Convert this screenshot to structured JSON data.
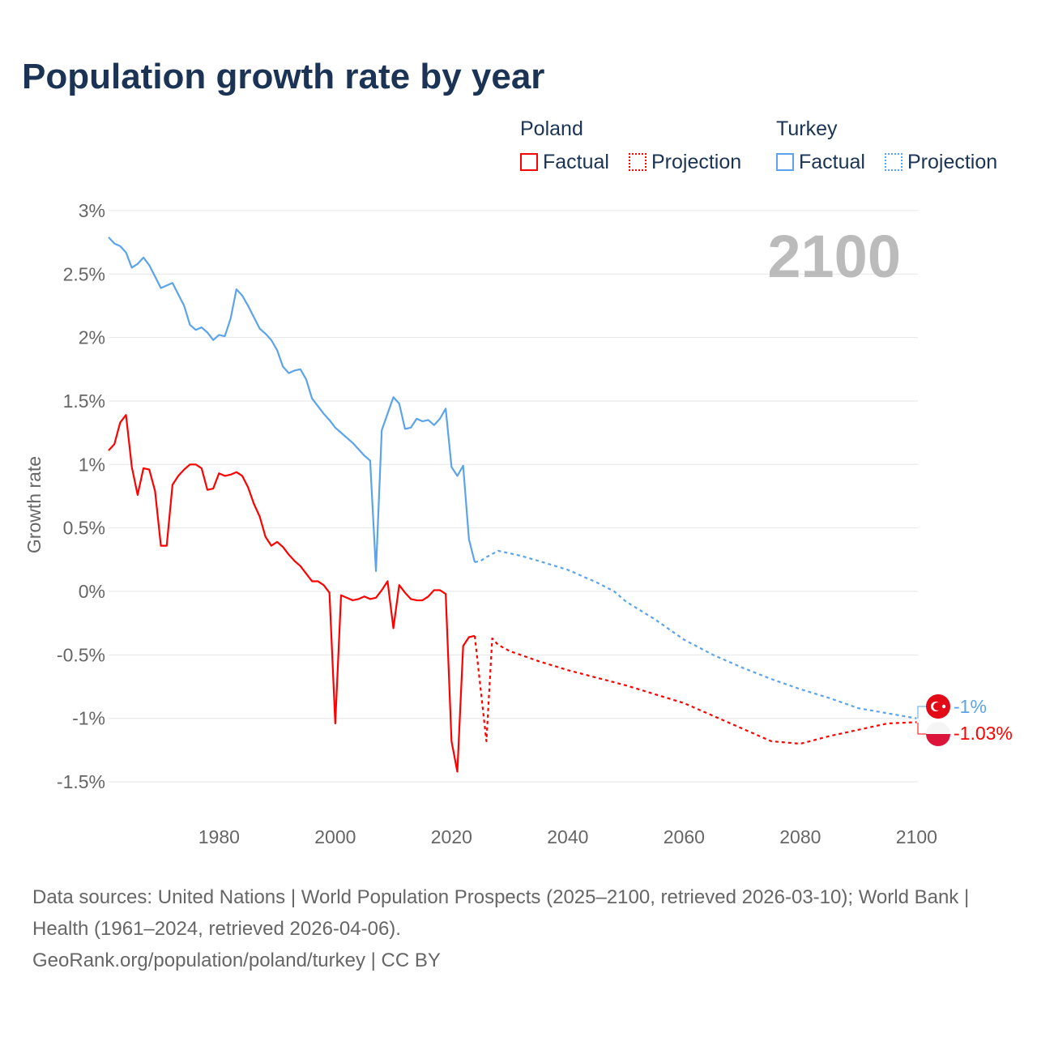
{
  "title": "Population growth rate by year",
  "legend": {
    "poland": {
      "name": "Poland",
      "factual": "Factual",
      "projection": "Projection"
    },
    "turkey": {
      "name": "Turkey",
      "factual": "Factual",
      "projection": "Projection"
    }
  },
  "colors": {
    "poland": "#ff0000",
    "turkey": "#5ba3ea"
  },
  "chart_data": {
    "type": "line",
    "title": "Population growth rate by year",
    "xlabel": "",
    "ylabel": "Growth rate",
    "year_label": "2100",
    "xlim": [
      1961,
      2100
    ],
    "ylim": [
      -1.5,
      3
    ],
    "xticks": [
      1980,
      2000,
      2020,
      2040,
      2060,
      2080,
      2100
    ],
    "yticks": [
      {
        "v": 3,
        "l": "3%"
      },
      {
        "v": 2.5,
        "l": "2.5%"
      },
      {
        "v": 2,
        "l": "2%"
      },
      {
        "v": 1.5,
        "l": "1.5%"
      },
      {
        "v": 1,
        "l": "1%"
      },
      {
        "v": 0.5,
        "l": "0.5%"
      },
      {
        "v": 0,
        "l": "0%"
      },
      {
        "v": -0.5,
        "l": "-0.5%"
      },
      {
        "v": -1,
        "l": "-1%"
      },
      {
        "v": -1.5,
        "l": "-1.5%"
      }
    ],
    "end_labels": {
      "turkey": "-1%",
      "poland": "-1.03%"
    },
    "series": [
      {
        "name": "Turkey Factual",
        "country": "turkey",
        "dashed": false,
        "x0": 1961,
        "values": [
          2.79,
          2.74,
          2.72,
          2.67,
          2.55,
          2.58,
          2.63,
          2.57,
          2.48,
          2.39,
          2.41,
          2.43,
          2.34,
          2.25,
          2.1,
          2.06,
          2.08,
          2.04,
          1.98,
          2.02,
          2.01,
          2.15,
          2.38,
          2.33,
          2.25,
          2.16,
          2.07,
          2.03,
          1.98,
          1.9,
          1.77,
          1.72,
          1.74,
          1.75,
          1.67,
          1.52,
          1.46,
          1.4,
          1.35,
          1.29,
          1.25,
          1.21,
          1.17,
          1.12,
          1.07,
          1.03,
          0.16,
          1.27,
          1.4,
          1.53,
          1.48,
          1.28,
          1.29,
          1.36,
          1.34,
          1.35,
          1.31,
          1.36,
          1.44,
          0.98,
          0.91,
          0.99,
          0.41,
          0.23
        ]
      },
      {
        "name": "Turkey Projection",
        "country": "turkey",
        "dashed": true,
        "points": [
          [
            2024,
            0.23
          ],
          [
            2025,
            0.24
          ],
          [
            2026,
            0.27
          ],
          [
            2028,
            0.32
          ],
          [
            2030,
            0.3
          ],
          [
            2032,
            0.28
          ],
          [
            2035,
            0.24
          ],
          [
            2040,
            0.17
          ],
          [
            2045,
            0.07
          ],
          [
            2048,
            0.0
          ],
          [
            2050,
            -0.08
          ],
          [
            2055,
            -0.22
          ],
          [
            2060,
            -0.38
          ],
          [
            2065,
            -0.5
          ],
          [
            2070,
            -0.6
          ],
          [
            2075,
            -0.69
          ],
          [
            2080,
            -0.77
          ],
          [
            2085,
            -0.84
          ],
          [
            2090,
            -0.92
          ],
          [
            2095,
            -0.96
          ],
          [
            2100,
            -1.0
          ]
        ]
      },
      {
        "name": "Poland Factual",
        "country": "poland",
        "dashed": false,
        "x0": 1961,
        "values": [
          1.11,
          1.16,
          1.33,
          1.39,
          0.98,
          0.76,
          0.97,
          0.96,
          0.79,
          0.36,
          0.36,
          0.84,
          0.91,
          0.96,
          1.0,
          1.0,
          0.97,
          0.8,
          0.81,
          0.93,
          0.91,
          0.92,
          0.94,
          0.91,
          0.82,
          0.69,
          0.59,
          0.43,
          0.36,
          0.39,
          0.35,
          0.29,
          0.24,
          0.2,
          0.14,
          0.08,
          0.08,
          0.05,
          -0.01,
          -1.04,
          -0.03,
          -0.05,
          -0.07,
          -0.06,
          -0.04,
          -0.06,
          -0.05,
          0.01,
          0.08,
          -0.29,
          0.05,
          -0.01,
          -0.06,
          -0.07,
          -0.07,
          -0.04,
          0.01,
          0.01,
          -0.02,
          -1.18,
          -1.42,
          -0.43,
          -0.36,
          -0.35
        ]
      },
      {
        "name": "Poland Projection",
        "country": "poland",
        "dashed": true,
        "points": [
          [
            2024,
            -0.35
          ],
          [
            2026,
            -1.18
          ],
          [
            2027,
            -0.37
          ],
          [
            2028,
            -0.42
          ],
          [
            2030,
            -0.47
          ],
          [
            2035,
            -0.55
          ],
          [
            2040,
            -0.62
          ],
          [
            2045,
            -0.68
          ],
          [
            2050,
            -0.74
          ],
          [
            2055,
            -0.81
          ],
          [
            2060,
            -0.88
          ],
          [
            2065,
            -0.98
          ],
          [
            2070,
            -1.08
          ],
          [
            2075,
            -1.18
          ],
          [
            2080,
            -1.2
          ],
          [
            2085,
            -1.14
          ],
          [
            2090,
            -1.09
          ],
          [
            2095,
            -1.04
          ],
          [
            2100,
            -1.03
          ]
        ]
      }
    ]
  },
  "footer": {
    "sources": "Data sources: United Nations | World Population Prospects (2025–2100, retrieved 2026-03-10); World Bank | Health (1961–2024, retrieved 2026-04-06).",
    "link": "GeoRank.org/population/poland/turkey | CC BY"
  }
}
